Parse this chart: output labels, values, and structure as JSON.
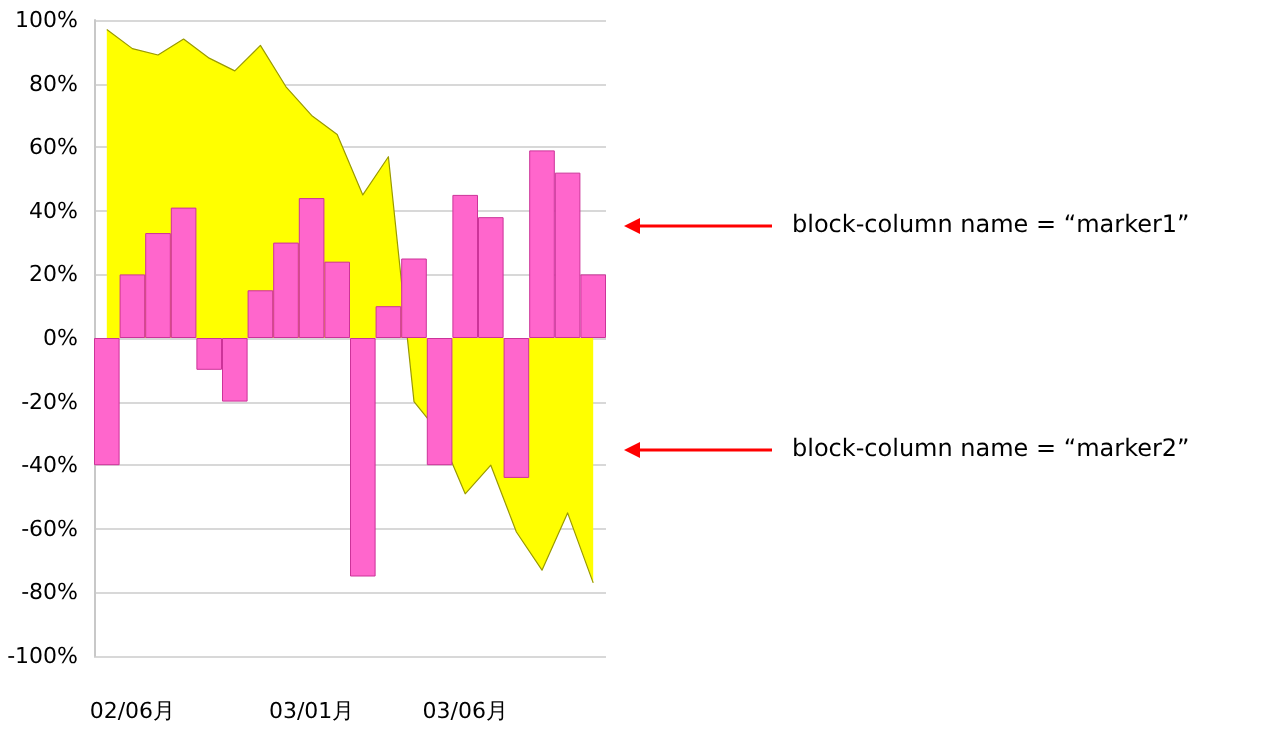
{
  "chart_data": {
    "type": "bar",
    "categories": [
      null,
      "02/06月",
      null,
      null,
      null,
      null,
      null,
      null,
      "03/01月",
      null,
      null,
      null,
      null,
      null,
      "03/06月",
      null,
      null,
      null,
      null,
      null
    ],
    "series": [
      {
        "type": "area",
        "color": "#ffff00",
        "values": [
          97,
          91,
          89,
          94,
          88,
          84,
          92,
          79,
          70,
          64,
          45,
          57,
          -20,
          -30,
          -49,
          -40,
          -61,
          -73,
          -55,
          -77
        ]
      },
      {
        "color": "#ff66cc",
        "values": [
          -40,
          20,
          33,
          41,
          -10,
          -20,
          15,
          30,
          44,
          24,
          -75,
          10,
          25,
          -40,
          45,
          38,
          -44,
          59,
          52,
          20
        ]
      }
    ],
    "ylim": [
      -100,
      100
    ],
    "yticks": [
      {
        "value": -100,
        "label": "-100%"
      },
      {
        "value": -80,
        "label": "-80%"
      },
      {
        "value": -60,
        "label": "-60%"
      },
      {
        "value": -40,
        "label": "-40%"
      },
      {
        "value": -20,
        "label": "-20%"
      },
      {
        "value": 0,
        "label": "0%"
      },
      {
        "value": 20,
        "label": "20%"
      },
      {
        "value": 40,
        "label": "40%"
      },
      {
        "value": 60,
        "label": "60%"
      },
      {
        "value": 80,
        "label": "80%"
      },
      {
        "value": 100,
        "label": "100%"
      }
    ],
    "grid": "y",
    "marker": "none",
    "annotations": [
      "block-column name = “marker1”",
      "block-column name = “marker2”"
    ]
  }
}
